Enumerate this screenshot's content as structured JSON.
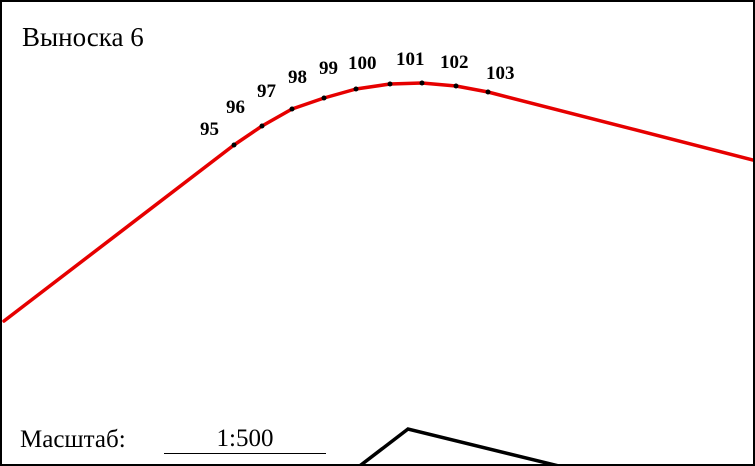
{
  "title": "Выноска 6",
  "scale": {
    "label": "Масштаб:",
    "value": "1:500"
  },
  "colors": {
    "route_line": "#e60000",
    "outline": "#000000",
    "background": "#ffffff"
  },
  "points": [
    {
      "label": "95"
    },
    {
      "label": "96"
    },
    {
      "label": "97"
    },
    {
      "label": "98"
    },
    {
      "label": "99"
    },
    {
      "label": "100"
    },
    {
      "label": "101"
    },
    {
      "label": "102"
    },
    {
      "label": "103"
    }
  ]
}
